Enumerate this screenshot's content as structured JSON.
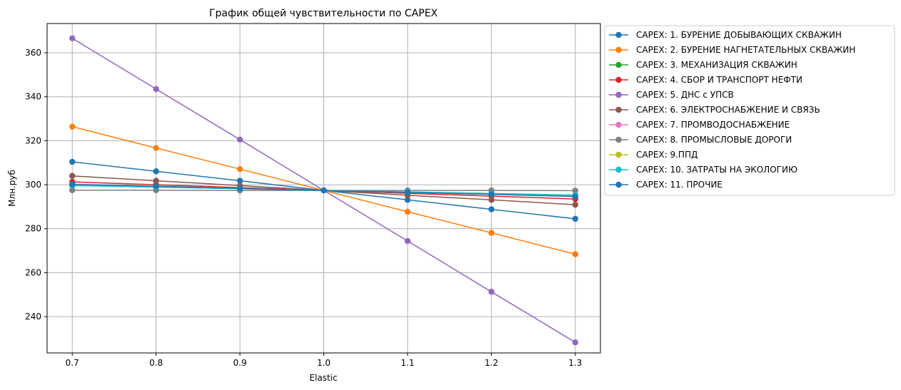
{
  "chart_data": {
    "type": "line",
    "title": "График общей чувствительности по CAPEX",
    "xlabel": "Elastic",
    "ylabel": "Млн.руб",
    "x": [
      0.7,
      0.8,
      0.9,
      1.0,
      1.1,
      1.2,
      1.3
    ],
    "x_tick_labels": [
      "0.7",
      "0.8",
      "0.9",
      "1.0",
      "1.1",
      "1.2",
      "1.3"
    ],
    "xlim": [
      0.67,
      1.33
    ],
    "ylim": [
      223.5,
      373.3
    ],
    "y_ticks": [
      240,
      260,
      280,
      300,
      320,
      340,
      360
    ],
    "y_tick_labels": [
      "240",
      "260",
      "280",
      "300",
      "320",
      "340",
      "360"
    ],
    "grid": true,
    "legend_position": "outside-right-top",
    "series": [
      {
        "name": "CAPEX: 1. БУРЕНИЕ ДОБЫВАЮЩИХ СКВАЖИН",
        "color": "#1f77b4",
        "values": [
          310.4,
          306.1,
          301.8,
          297.4,
          293.1,
          288.8,
          284.5
        ]
      },
      {
        "name": "CAPEX: 2. БУРЕНИЕ НАГНЕТАТЕЛЬНЫХ СКВАЖИН",
        "color": "#ff7f0e",
        "values": [
          326.4,
          316.7,
          307.1,
          297.4,
          287.7,
          278.1,
          268.4
        ]
      },
      {
        "name": "CAPEX: 3. МЕХАНИЗАЦИЯ СКВАЖИН",
        "color": "#2ca02c",
        "values": [
          299.6,
          298.9,
          298.2,
          297.4,
          296.7,
          296.0,
          295.2
        ]
      },
      {
        "name": "CAPEX: 4. СБОР И ТРАНСПОРТ НЕФТИ",
        "color": "#d62728",
        "values": [
          301.3,
          300.0,
          298.7,
          297.4,
          296.1,
          294.8,
          293.5
        ]
      },
      {
        "name": "CAPEX: 5. ДНС с УПСВ",
        "color": "#9467bd",
        "values": [
          366.6,
          343.5,
          320.5,
          297.4,
          274.4,
          251.3,
          228.3
        ]
      },
      {
        "name": "CAPEX: 6. ЭЛЕКТРОСНАБЖЕНИЕ И СВЯЗЬ",
        "color": "#8c564b",
        "values": [
          304.0,
          301.8,
          299.6,
          297.4,
          295.2,
          293.1,
          290.9
        ]
      },
      {
        "name": "CAPEX: 7. ПРОМВОДОСНАБЖЕНИЕ",
        "color": "#e377c2",
        "values": [
          299.9,
          299.1,
          298.3,
          297.4,
          296.6,
          295.8,
          295.0
        ]
      },
      {
        "name": "CAPEX: 8. ПРОМЫСЛОВЫЕ ДОРОГИ",
        "color": "#7f7f7f",
        "values": [
          297.5,
          297.5,
          297.4,
          297.4,
          297.4,
          297.4,
          297.3
        ]
      },
      {
        "name": "CAPEX: 9.ППД",
        "color": "#bcbd22",
        "values": [
          300.1,
          299.2,
          298.3,
          297.4,
          296.5,
          295.6,
          294.7
        ]
      },
      {
        "name": "CAPEX: 10. ЗАТРАТЫ НА ЭКОЛОГИЮ",
        "color": "#17becf",
        "values": [
          299.6,
          298.9,
          298.2,
          297.4,
          296.7,
          296.0,
          295.3
        ]
      },
      {
        "name": "CAPEX: 11. ПРОЧИЕ",
        "color": "#1f77b4",
        "values": [
          300.2,
          299.3,
          298.3,
          297.4,
          296.5,
          295.6,
          294.6
        ]
      }
    ]
  }
}
